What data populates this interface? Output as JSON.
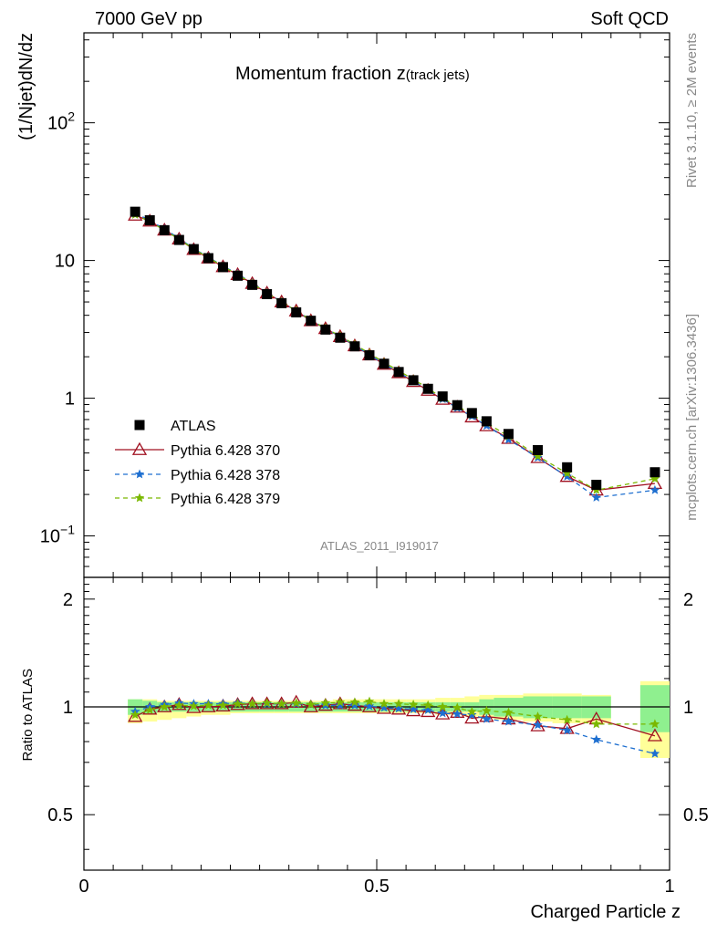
{
  "header": {
    "left": "7000 GeV pp",
    "right": "Soft QCD"
  },
  "side": {
    "top": "Rivet 3.1.10, ≥ 2M events",
    "bottom": "mcplots.cern.ch [arXiv:1306.3436]"
  },
  "chart_data": {
    "type": "scatter",
    "title_main": "Momentum fraction z",
    "title_sub": "(track jets)",
    "analysis_label": "ATLAS_2011_I919017",
    "xlabel": "Charged Particle z",
    "ylabel_top": "(1/Njet)dN/dz",
    "ylabel_bottom": "Ratio to ATLAS",
    "xlim": [
      0,
      1
    ],
    "top_ylim": [
      0.05,
      450
    ],
    "top_yscale": "log",
    "bottom_ylim": [
      0.35,
      2.3
    ],
    "bottom_yscale": "log",
    "x_ticks": [
      "0",
      "0.5",
      "1"
    ],
    "top_y_ticks": [
      "10^-1",
      "1",
      "10",
      "10^2"
    ],
    "bottom_y_ticks": [
      "0.5",
      "1",
      "2"
    ],
    "legend_position": "lower-left",
    "x": [
      0.0875,
      0.1125,
      0.1375,
      0.1625,
      0.1875,
      0.2125,
      0.2375,
      0.2625,
      0.2875,
      0.3125,
      0.3375,
      0.3625,
      0.3875,
      0.4125,
      0.4375,
      0.4625,
      0.4875,
      0.5125,
      0.5375,
      0.5625,
      0.5875,
      0.6125,
      0.6375,
      0.6625,
      0.6875,
      0.725,
      0.775,
      0.825,
      0.875,
      0.975
    ],
    "x_bins": [
      [
        0.075,
        0.1
      ],
      [
        0.1,
        0.125
      ],
      [
        0.125,
        0.15
      ],
      [
        0.15,
        0.175
      ],
      [
        0.175,
        0.2
      ],
      [
        0.2,
        0.225
      ],
      [
        0.225,
        0.25
      ],
      [
        0.25,
        0.275
      ],
      [
        0.275,
        0.3
      ],
      [
        0.3,
        0.325
      ],
      [
        0.325,
        0.35
      ],
      [
        0.35,
        0.375
      ],
      [
        0.375,
        0.4
      ],
      [
        0.4,
        0.425
      ],
      [
        0.425,
        0.45
      ],
      [
        0.45,
        0.475
      ],
      [
        0.475,
        0.5
      ],
      [
        0.5,
        0.525
      ],
      [
        0.525,
        0.55
      ],
      [
        0.55,
        0.575
      ],
      [
        0.575,
        0.6
      ],
      [
        0.6,
        0.625
      ],
      [
        0.625,
        0.65
      ],
      [
        0.65,
        0.675
      ],
      [
        0.675,
        0.7
      ],
      [
        0.7,
        0.75
      ],
      [
        0.75,
        0.8
      ],
      [
        0.8,
        0.85
      ],
      [
        0.85,
        0.9
      ],
      [
        0.95,
        1.0
      ]
    ],
    "series": [
      {
        "name": "ATLAS",
        "marker": "square",
        "color": "#000000",
        "values": [
          22.6,
          19.6,
          16.6,
          14.1,
          12.1,
          10.4,
          8.95,
          7.75,
          6.65,
          5.7,
          4.9,
          4.2,
          3.65,
          3.15,
          2.75,
          2.38,
          2.05,
          1.78,
          1.55,
          1.35,
          1.17,
          1.03,
          0.89,
          0.78,
          0.68,
          0.55,
          0.42,
          0.315,
          0.235,
          0.29
        ],
        "band_stat_lo": [
          0.95,
          0.96,
          0.97,
          0.97,
          0.97,
          0.97,
          0.97,
          0.97,
          0.97,
          0.97,
          0.97,
          0.97,
          0.97,
          0.97,
          0.97,
          0.97,
          0.97,
          0.97,
          0.97,
          0.97,
          0.97,
          0.97,
          0.97,
          0.97,
          0.95,
          0.94,
          0.93,
          0.93,
          0.93,
          0.85
        ],
        "band_stat_hi": [
          1.05,
          1.04,
          1.03,
          1.03,
          1.03,
          1.03,
          1.03,
          1.03,
          1.03,
          1.03,
          1.03,
          1.03,
          1.03,
          1.03,
          1.03,
          1.03,
          1.03,
          1.03,
          1.03,
          1.03,
          1.03,
          1.03,
          1.03,
          1.03,
          1.05,
          1.06,
          1.07,
          1.07,
          1.07,
          1.15
        ],
        "band_tot_lo": [
          0.9,
          0.91,
          0.92,
          0.93,
          0.94,
          0.95,
          0.95,
          0.96,
          0.96,
          0.96,
          0.96,
          0.96,
          0.96,
          0.96,
          0.96,
          0.96,
          0.96,
          0.96,
          0.96,
          0.96,
          0.96,
          0.95,
          0.95,
          0.94,
          0.93,
          0.92,
          0.91,
          0.9,
          0.9,
          0.72
        ],
        "band_tot_hi": [
          1.05,
          1.05,
          1.04,
          1.04,
          1.04,
          1.04,
          1.04,
          1.04,
          1.04,
          1.04,
          1.04,
          1.04,
          1.04,
          1.04,
          1.05,
          1.05,
          1.05,
          1.05,
          1.05,
          1.05,
          1.05,
          1.06,
          1.06,
          1.07,
          1.08,
          1.08,
          1.09,
          1.09,
          1.08,
          1.18
        ]
      },
      {
        "name": "Pythia 6.428 370",
        "marker": "triangle-open",
        "line": "solid",
        "color": "#a01020",
        "values": [
          21.3,
          19.3,
          16.6,
          14.3,
          12.0,
          10.4,
          9.0,
          7.9,
          6.8,
          5.8,
          5.0,
          4.3,
          3.65,
          3.2,
          2.8,
          2.4,
          2.06,
          1.76,
          1.53,
          1.32,
          1.14,
          0.98,
          0.86,
          0.73,
          0.63,
          0.51,
          0.37,
          0.27,
          0.215,
          0.24
        ],
        "ratio": [
          0.94,
          0.985,
          1.0,
          1.015,
          0.995,
          1.0,
          1.005,
          1.015,
          1.02,
          1.02,
          1.02,
          1.03,
          1.0,
          1.01,
          1.02,
          1.01,
          1.0,
          0.99,
          0.985,
          0.975,
          0.97,
          0.955,
          0.965,
          0.93,
          0.94,
          0.925,
          0.885,
          0.87,
          0.925,
          0.83
        ]
      },
      {
        "name": "Pythia 6.428 378",
        "marker": "star",
        "line": "dashed",
        "color": "#1e6fd0",
        "values": [
          22.0,
          19.6,
          16.9,
          14.5,
          12.2,
          10.6,
          9.1,
          8.0,
          6.85,
          5.85,
          5.0,
          4.3,
          3.7,
          3.2,
          2.8,
          2.42,
          2.07,
          1.77,
          1.54,
          1.33,
          1.15,
          0.985,
          0.85,
          0.74,
          0.63,
          0.5,
          0.37,
          0.27,
          0.19,
          0.215
        ],
        "ratio": [
          0.97,
          1.0,
          1.015,
          1.025,
          1.02,
          1.02,
          1.02,
          1.025,
          1.02,
          1.02,
          1.02,
          1.02,
          1.015,
          1.01,
          1.01,
          1.01,
          1.005,
          0.995,
          0.99,
          0.985,
          0.98,
          0.96,
          0.955,
          0.95,
          0.925,
          0.91,
          0.89,
          0.86,
          0.81,
          0.74
        ]
      },
      {
        "name": "Pythia 6.428 379",
        "marker": "star",
        "line": "dashed",
        "color": "#7ab800",
        "values": [
          21.5,
          19.2,
          16.6,
          14.3,
          12.1,
          10.5,
          9.05,
          7.9,
          6.8,
          5.8,
          5.0,
          4.32,
          3.7,
          3.22,
          2.83,
          2.45,
          2.12,
          1.82,
          1.58,
          1.37,
          1.18,
          1.0,
          0.88,
          0.76,
          0.66,
          0.53,
          0.38,
          0.285,
          0.215,
          0.26
        ],
        "ratio": [
          0.95,
          0.98,
          1.0,
          1.01,
          1.005,
          1.01,
          1.01,
          1.02,
          1.02,
          1.025,
          1.02,
          1.025,
          1.015,
          1.025,
          1.03,
          1.03,
          1.035,
          1.02,
          1.02,
          1.015,
          1.01,
          1.0,
          0.995,
          0.97,
          0.975,
          0.965,
          0.94,
          0.92,
          0.895,
          0.895
        ]
      }
    ]
  }
}
